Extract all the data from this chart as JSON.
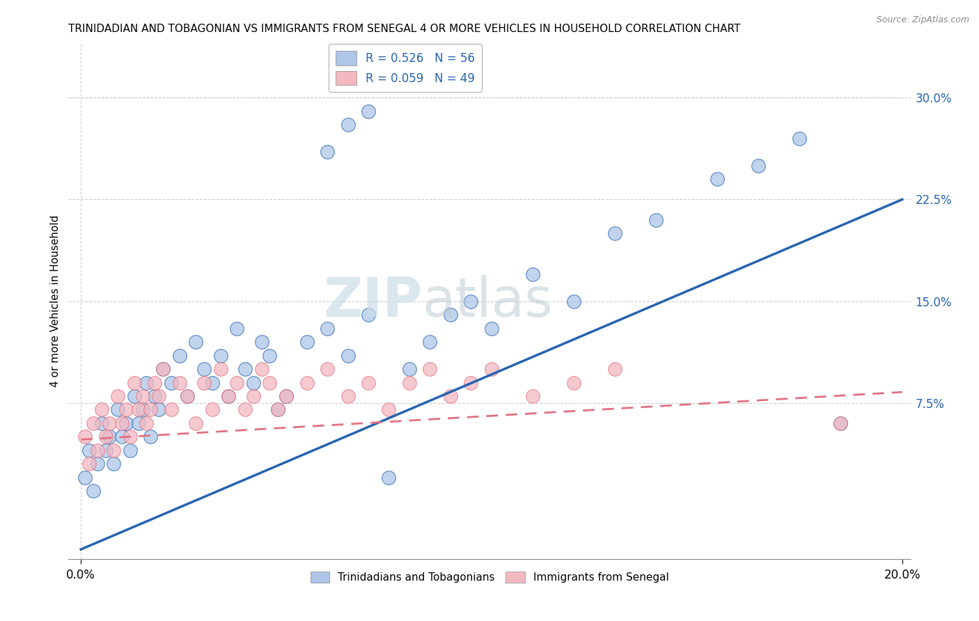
{
  "title": "TRINIDADIAN AND TOBAGONIAN VS IMMIGRANTS FROM SENEGAL 4 OR MORE VEHICLES IN HOUSEHOLD CORRELATION CHART",
  "source": "Source: ZipAtlas.com",
  "ylabel": "4 or more Vehicles in Household",
  "xlim": [
    0.0,
    0.2
  ],
  "ylim": [
    -0.04,
    0.34
  ],
  "xtick_labels": [
    "0.0%",
    "20.0%"
  ],
  "ytick_labels_right": [
    "30.0%",
    "22.5%",
    "15.0%",
    "7.5%"
  ],
  "ytick_positions_right": [
    0.3,
    0.225,
    0.15,
    0.075
  ],
  "legend_labels": [
    "Trinidadians and Tobagonians",
    "Immigrants from Senegal"
  ],
  "series1_color": "#aec6e8",
  "series2_color": "#f4b8c1",
  "line1_color": "#2563b0",
  "line2_color": "#e07080",
  "watermark_text": "ZIPatlas",
  "watermark_color": "#ccdde8",
  "R1": 0.526,
  "N1": 56,
  "R2": 0.059,
  "N2": 49,
  "line1_x0": 0.0,
  "line1_y0": -0.033,
  "line1_x1": 0.2,
  "line1_y1": 0.225,
  "line2_x0": 0.0,
  "line2_y0": 0.048,
  "line2_x1": 0.2,
  "line2_y1": 0.083,
  "blue_pts_x": [
    0.001,
    0.002,
    0.003,
    0.004,
    0.005,
    0.006,
    0.007,
    0.008,
    0.009,
    0.01,
    0.011,
    0.012,
    0.013,
    0.014,
    0.015,
    0.016,
    0.017,
    0.018,
    0.019,
    0.02,
    0.022,
    0.024,
    0.026,
    0.028,
    0.03,
    0.032,
    0.034,
    0.036,
    0.038,
    0.04,
    0.042,
    0.044,
    0.046,
    0.048,
    0.05,
    0.055,
    0.06,
    0.065,
    0.07,
    0.075,
    0.08,
    0.085,
    0.09,
    0.095,
    0.1,
    0.11,
    0.12,
    0.13,
    0.14,
    0.155,
    0.165,
    0.175,
    0.185,
    0.06,
    0.065,
    0.07
  ],
  "blue_pts_y": [
    0.02,
    0.04,
    0.01,
    0.03,
    0.06,
    0.04,
    0.05,
    0.03,
    0.07,
    0.05,
    0.06,
    0.04,
    0.08,
    0.06,
    0.07,
    0.09,
    0.05,
    0.08,
    0.07,
    0.1,
    0.09,
    0.11,
    0.08,
    0.12,
    0.1,
    0.09,
    0.11,
    0.08,
    0.13,
    0.1,
    0.09,
    0.12,
    0.11,
    0.07,
    0.08,
    0.12,
    0.13,
    0.11,
    0.14,
    0.02,
    0.1,
    0.12,
    0.14,
    0.15,
    0.13,
    0.17,
    0.15,
    0.2,
    0.21,
    0.24,
    0.25,
    0.27,
    0.06,
    0.26,
    0.28,
    0.29
  ],
  "pink_pts_x": [
    0.001,
    0.002,
    0.003,
    0.004,
    0.005,
    0.006,
    0.007,
    0.008,
    0.009,
    0.01,
    0.011,
    0.012,
    0.013,
    0.014,
    0.015,
    0.016,
    0.017,
    0.018,
    0.019,
    0.02,
    0.022,
    0.024,
    0.026,
    0.028,
    0.03,
    0.032,
    0.034,
    0.036,
    0.038,
    0.04,
    0.042,
    0.044,
    0.046,
    0.048,
    0.05,
    0.055,
    0.06,
    0.065,
    0.07,
    0.075,
    0.08,
    0.085,
    0.09,
    0.095,
    0.1,
    0.11,
    0.12,
    0.13,
    0.185
  ],
  "pink_pts_y": [
    0.05,
    0.03,
    0.06,
    0.04,
    0.07,
    0.05,
    0.06,
    0.04,
    0.08,
    0.06,
    0.07,
    0.05,
    0.09,
    0.07,
    0.08,
    0.06,
    0.07,
    0.09,
    0.08,
    0.1,
    0.07,
    0.09,
    0.08,
    0.06,
    0.09,
    0.07,
    0.1,
    0.08,
    0.09,
    0.07,
    0.08,
    0.1,
    0.09,
    0.07,
    0.08,
    0.09,
    0.1,
    0.08,
    0.09,
    0.07,
    0.09,
    0.1,
    0.08,
    0.09,
    0.1,
    0.08,
    0.09,
    0.1,
    0.06
  ]
}
